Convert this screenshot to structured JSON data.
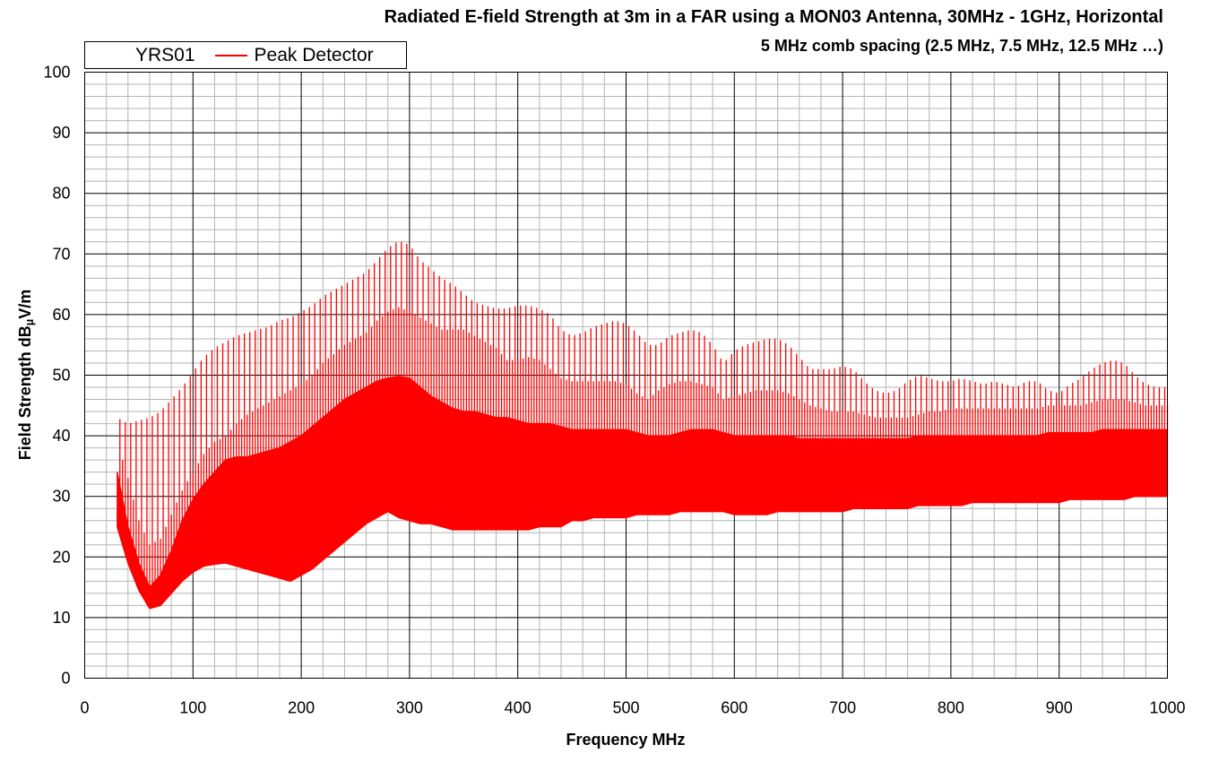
{
  "chart_data": {
    "type": "line",
    "title": "Radiated E-field Strength at 3m in a FAR using a MON03 Antenna, 30MHz - 1GHz, Horizontal",
    "subtitle": "5 MHz comb spacing (2.5 MHz, 7.5 MHz, 12.5 MHz …)",
    "xlabel": "Frequency MHz",
    "ylabel_main": "Field Strength dB",
    "ylabel_sub": "µ",
    "ylabel_tail": "V/m",
    "xlim": [
      0,
      1000
    ],
    "ylim": [
      0,
      100
    ],
    "x_ticks": [
      "0",
      "100",
      "200",
      "300",
      "400",
      "500",
      "600",
      "700",
      "800",
      "900",
      "1000"
    ],
    "y_ticks": [
      "0",
      "10",
      "20",
      "30",
      "40",
      "50",
      "60",
      "70",
      "80",
      "90",
      "100"
    ],
    "grid": true,
    "legend": {
      "placement": "top-left",
      "source": "YRS01",
      "series_name": "Peak Detector"
    },
    "comb_spacing_mhz": 5,
    "first_comb_mhz": 2.5,
    "series": [
      {
        "name": "Peak Detector",
        "color": "#ff0000",
        "x": [
          30,
          40,
          50,
          60,
          70,
          80,
          90,
          100,
          110,
          120,
          130,
          140,
          150,
          160,
          170,
          180,
          190,
          200,
          210,
          220,
          230,
          240,
          250,
          260,
          270,
          280,
          290,
          300,
          310,
          320,
          330,
          340,
          350,
          360,
          370,
          380,
          390,
          400,
          410,
          420,
          430,
          440,
          450,
          460,
          470,
          480,
          490,
          500,
          510,
          520,
          530,
          540,
          550,
          560,
          570,
          580,
          590,
          600,
          610,
          620,
          630,
          640,
          650,
          660,
          670,
          680,
          690,
          700,
          710,
          720,
          730,
          740,
          750,
          760,
          770,
          780,
          790,
          800,
          810,
          820,
          830,
          840,
          850,
          860,
          870,
          880,
          890,
          900,
          910,
          920,
          930,
          940,
          950,
          960,
          970,
          980,
          990,
          1000
        ],
        "peak_envelope": [
          43,
          42,
          42.5,
          43,
          44,
          46,
          48,
          50.5,
          53,
          54.5,
          55.5,
          56.5,
          57,
          57.5,
          58,
          59,
          59.5,
          60.5,
          61.5,
          63,
          64,
          65,
          66,
          67,
          69,
          71,
          72.2,
          71.5,
          69,
          67.5,
          66,
          65,
          63.5,
          62,
          61.5,
          61,
          61,
          61.5,
          61.5,
          61,
          60,
          57.5,
          56.5,
          57,
          58,
          58.5,
          59,
          58.5,
          57,
          55,
          55,
          56.5,
          57,
          57.5,
          57,
          55,
          52,
          54,
          55,
          55.5,
          56,
          56,
          55,
          53,
          51,
          51,
          51,
          51.5,
          51,
          49,
          47.5,
          47,
          47.5,
          49,
          50,
          49.5,
          49,
          49,
          49.5,
          49,
          48.5,
          49,
          48.5,
          48,
          49,
          49,
          47.5,
          47,
          48.5,
          49.5,
          51,
          52,
          52.5,
          52,
          50,
          48.5,
          48,
          48
        ],
        "mid_level": [
          39,
          33,
          26,
          22,
          23,
          27,
          31,
          34,
          37,
          39,
          40,
          42,
          43.5,
          44.5,
          45.5,
          46.5,
          47.5,
          48.5,
          50,
          52,
          53.5,
          55,
          56,
          57,
          59,
          60.5,
          61.2,
          60.5,
          59.5,
          58.5,
          57.5,
          57.5,
          57.5,
          56.5,
          55.5,
          54.5,
          52.5,
          52.5,
          53,
          52.5,
          51,
          49.5,
          49,
          49,
          49,
          49,
          49,
          48.5,
          47,
          46,
          47.5,
          48.5,
          49,
          49,
          48.5,
          48,
          46,
          46.5,
          47,
          47.5,
          47.5,
          47.5,
          47,
          46,
          45,
          44.5,
          44,
          44,
          44,
          43.5,
          43,
          43,
          43,
          43,
          43.5,
          44,
          44,
          44.5,
          44.5,
          44.5,
          44.5,
          44.5,
          44.5,
          44.5,
          44.5,
          44.5,
          45,
          45,
          45,
          45,
          45.5,
          46,
          46,
          46,
          45.5,
          45,
          45,
          45
        ],
        "noise_floor": [
          25,
          19,
          14.5,
          11.5,
          12,
          14,
          16,
          17.5,
          18.5,
          18.8,
          19,
          18.5,
          18,
          17.5,
          17,
          16.5,
          16,
          17,
          18,
          19.5,
          21,
          22.5,
          24,
          25.5,
          26.5,
          27.5,
          26.5,
          26,
          25.5,
          25.5,
          25,
          24.5,
          24.5,
          24.5,
          24.5,
          24.5,
          24.5,
          24.5,
          24.5,
          25,
          25,
          25,
          26,
          26,
          26.5,
          26.5,
          26.5,
          26.5,
          27,
          27,
          27,
          27,
          27.5,
          27.5,
          27.5,
          27.5,
          27.5,
          27,
          27,
          27,
          27,
          27.5,
          27.5,
          27.5,
          27.5,
          27.5,
          27.5,
          27.5,
          28,
          28,
          28,
          28,
          28,
          28,
          28.5,
          28.5,
          28.5,
          28.5,
          28.5,
          29,
          29,
          29,
          29,
          29,
          29,
          29,
          29,
          29,
          29.5,
          29.5,
          29.5,
          29.5,
          29.5,
          29.5,
          30,
          30,
          30,
          30
        ],
        "upper_band": [
          34,
          25,
          19,
          15,
          17,
          21,
          26,
          29.5,
          32,
          34,
          36,
          36.5,
          36.5,
          37,
          37.5,
          38,
          39,
          40,
          41.5,
          43,
          44.5,
          46,
          47,
          48,
          49,
          49.5,
          49.8,
          49.5,
          48,
          46.5,
          45.5,
          44.5,
          44,
          44,
          43.5,
          43,
          43,
          42.5,
          42,
          42,
          42,
          41.5,
          41,
          41,
          41,
          41,
          41,
          41,
          40.5,
          40,
          40,
          40,
          40.5,
          41,
          41,
          41,
          40.5,
          40,
          40,
          40,
          40,
          40,
          40,
          39.5,
          39.5,
          39.5,
          39.5,
          39.5,
          39.5,
          39.5,
          39.5,
          39.5,
          39.5,
          39.5,
          40,
          40,
          40,
          40,
          40,
          40,
          40,
          40,
          40,
          40,
          40,
          40,
          40.5,
          40.5,
          40.5,
          40.5,
          40.5,
          41,
          41,
          41,
          41,
          41,
          41,
          41
        ]
      }
    ]
  }
}
